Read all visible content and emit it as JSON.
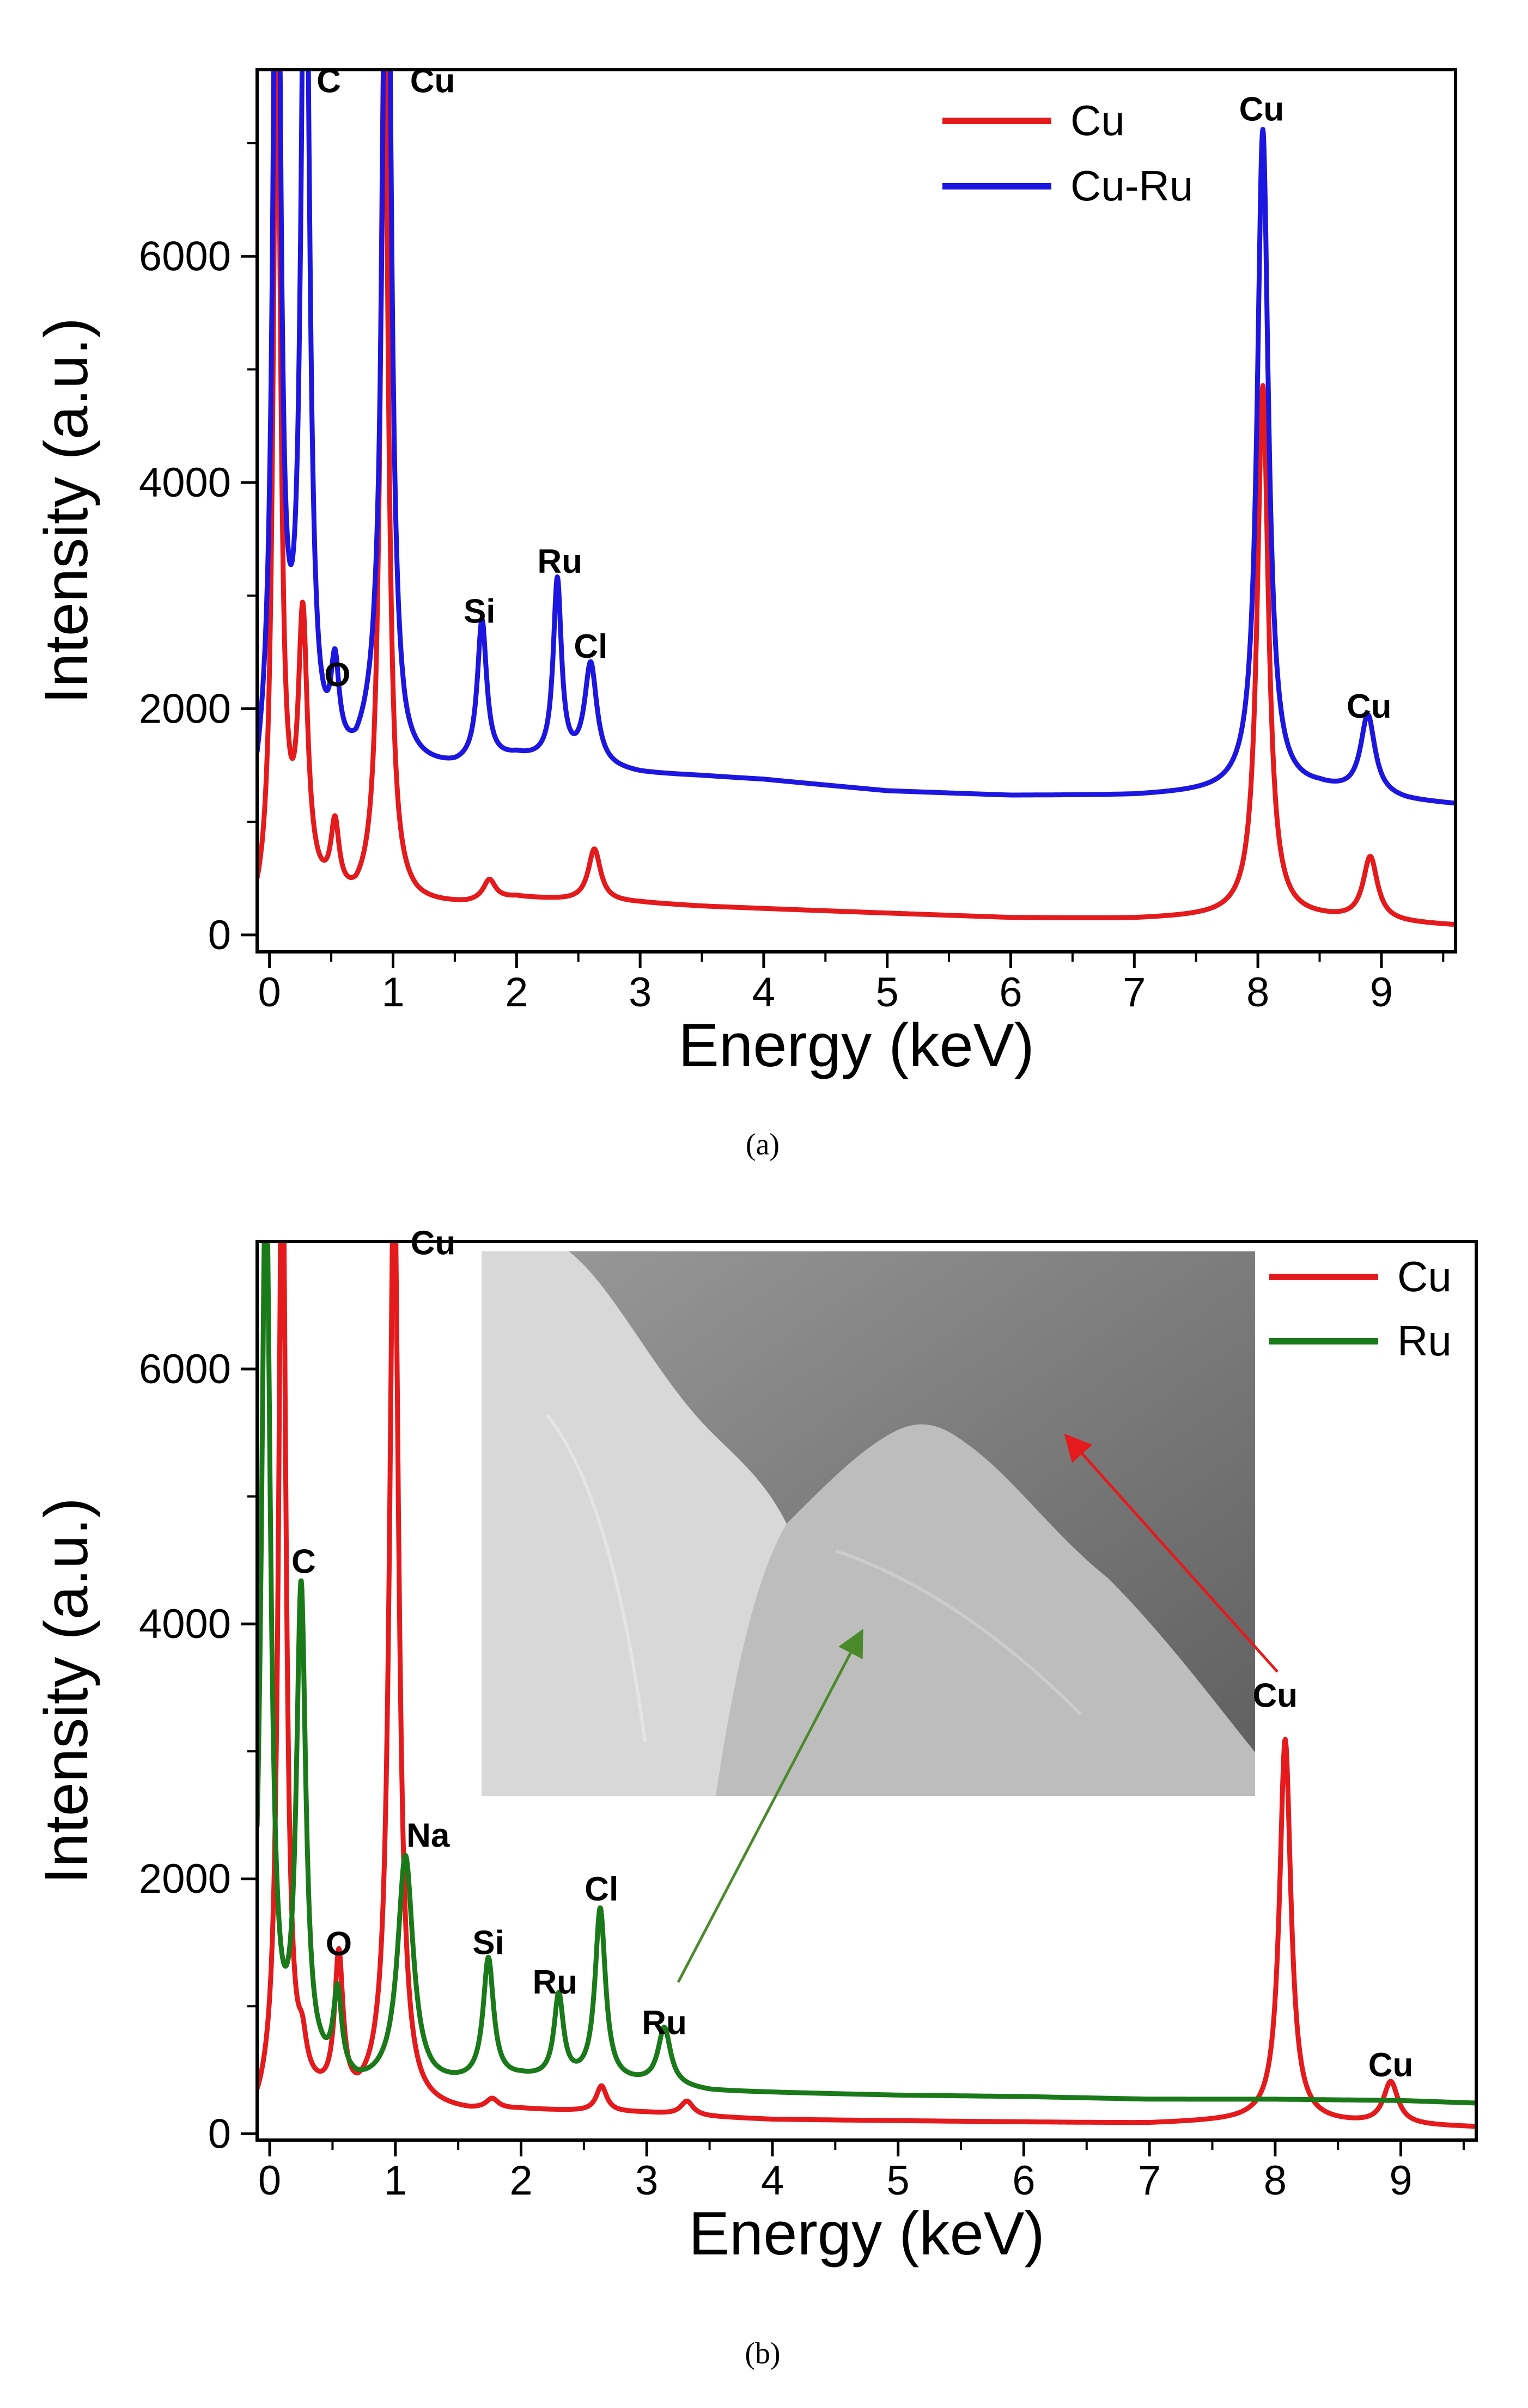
{
  "chart_data": [
    {
      "id": "a",
      "type": "line",
      "caption": "(a)",
      "xlabel": "Energy (keV)",
      "ylabel": "Intensity (a.u.)",
      "xlim": [
        -0.1,
        9.6
      ],
      "ylim": [
        -150,
        7650
      ],
      "xticks": [
        0,
        1,
        2,
        3,
        4,
        5,
        6,
        7,
        8,
        9
      ],
      "yticks": [
        0,
        2000,
        4000,
        6000
      ],
      "legend_position": "top-right",
      "series": [
        {
          "name": "Cu",
          "color": "#e41a1c",
          "baseline": [
            [
              -0.1,
              80
            ],
            [
              0,
              180
            ],
            [
              0.15,
              450
            ],
            [
              0.4,
              300
            ],
            [
              0.7,
              220
            ],
            [
              0.85,
              300
            ],
            [
              1.2,
              250
            ],
            [
              1.6,
              260
            ],
            [
              2.0,
              320
            ],
            [
              2.4,
              300
            ],
            [
              3,
              280
            ],
            [
              3.5,
              250
            ],
            [
              4,
              230
            ],
            [
              5,
              190
            ],
            [
              6,
              150
            ],
            [
              7,
              140
            ],
            [
              7.8,
              160
            ],
            [
              8.5,
              140
            ],
            [
              9.2,
              100
            ],
            [
              9.6,
              80
            ]
          ],
          "peaks": [
            [
              0.06,
              8200,
              0.035
            ],
            [
              0.27,
              2300,
              0.045
            ],
            [
              0.53,
              600,
              0.04
            ],
            [
              0.93,
              7700,
              0.04
            ],
            [
              1.78,
              180,
              0.06
            ],
            [
              2.63,
              460,
              0.06
            ],
            [
              8.04,
              4700,
              0.055
            ],
            [
              8.91,
              560,
              0.07
            ]
          ]
        },
        {
          "name": "Cu-Ru",
          "color": "#1c16e0",
          "baseline": [
            [
              -0.1,
              1100
            ],
            [
              0,
              1500
            ],
            [
              0.15,
              1600
            ],
            [
              0.4,
              1400
            ],
            [
              0.7,
              1450
            ],
            [
              0.85,
              1700
            ],
            [
              1.1,
              1450
            ],
            [
              1.5,
              1450
            ],
            [
              2.0,
              1550
            ],
            [
              2.5,
              1480
            ],
            [
              3,
              1420
            ],
            [
              3.5,
              1400
            ],
            [
              4,
              1370
            ],
            [
              5,
              1270
            ],
            [
              6,
              1230
            ],
            [
              7,
              1230
            ],
            [
              7.8,
              1260
            ],
            [
              8.5,
              1280
            ],
            [
              9.2,
              1180
            ],
            [
              9.6,
              1150
            ]
          ],
          "peaks": [
            [
              0.06,
              9000,
              0.035
            ],
            [
              0.29,
              8300,
              0.04
            ],
            [
              0.53,
              750,
              0.04
            ],
            [
              0.95,
              9000,
              0.04
            ],
            [
              1.72,
              1250,
              0.045
            ],
            [
              2.33,
              1600,
              0.04
            ],
            [
              2.6,
              900,
              0.06
            ],
            [
              8.04,
              5850,
              0.055
            ],
            [
              8.89,
              700,
              0.07
            ]
          ]
        }
      ],
      "annotations": [
        {
          "text": "C",
          "x": 0.48,
          "y": 7450
        },
        {
          "text": "Cu",
          "x": 1.32,
          "y": 7450
        },
        {
          "text": "O",
          "x": 0.55,
          "y": 2200
        },
        {
          "text": "Si",
          "x": 1.7,
          "y": 2760
        },
        {
          "text": "Ru",
          "x": 2.35,
          "y": 3200
        },
        {
          "text": "Cl",
          "x": 2.6,
          "y": 2450
        },
        {
          "text": "Cu",
          "x": 8.03,
          "y": 7200
        },
        {
          "text": "Cu",
          "x": 8.9,
          "y": 1920
        }
      ]
    },
    {
      "id": "b",
      "type": "line",
      "caption": "(b)",
      "xlabel": "Energy (keV)",
      "ylabel": "Intensity (a.u.)",
      "xlim": [
        -0.1,
        9.6
      ],
      "ylim": [
        -50,
        7000
      ],
      "xticks": [
        0,
        1,
        2,
        3,
        4,
        5,
        6,
        7,
        8,
        9
      ],
      "yticks": [
        0,
        2000,
        4000,
        6000
      ],
      "legend_position": "top-right",
      "inset": "SEM micrograph",
      "series": [
        {
          "name": "Cu",
          "color": "#e41a1c",
          "baseline": [
            [
              -0.1,
              100
            ],
            [
              0,
              200
            ],
            [
              0.15,
              300
            ],
            [
              0.4,
              250
            ],
            [
              0.7,
              200
            ],
            [
              0.85,
              250
            ],
            [
              1.2,
              180
            ],
            [
              1.6,
              160
            ],
            [
              2,
              180
            ],
            [
              2.5,
              170
            ],
            [
              3,
              160
            ],
            [
              3.5,
              130
            ],
            [
              4,
              110
            ],
            [
              5,
              100
            ],
            [
              6,
              90
            ],
            [
              7,
              80
            ],
            [
              7.8,
              100
            ],
            [
              8.5,
              80
            ],
            [
              9.2,
              60
            ],
            [
              9.6,
              50
            ]
          ],
          "peaks": [
            [
              0.1,
              7800,
              0.035
            ],
            [
              0.26,
              250,
              0.04
            ],
            [
              0.55,
              1100,
              0.04
            ],
            [
              0.99,
              7400,
              0.045
            ],
            [
              1.77,
              80,
              0.06
            ],
            [
              2.64,
              200,
              0.05
            ],
            [
              3.32,
              110,
              0.06
            ],
            [
              8.08,
              3000,
              0.055
            ],
            [
              8.92,
              330,
              0.07
            ]
          ]
        },
        {
          "name": "Ru",
          "color": "#1a7a1a",
          "baseline": [
            [
              -0.1,
              200
            ],
            [
              0,
              250
            ],
            [
              0.15,
              300
            ],
            [
              0.4,
              380
            ],
            [
              0.7,
              330
            ],
            [
              0.9,
              350
            ],
            [
              1.3,
              350
            ],
            [
              1.6,
              380
            ],
            [
              2,
              420
            ],
            [
              2.5,
              400
            ],
            [
              3,
              380
            ],
            [
              3.5,
              330
            ],
            [
              4,
              320
            ],
            [
              5,
              300
            ],
            [
              6,
              290
            ],
            [
              7,
              270
            ],
            [
              8,
              270
            ],
            [
              9,
              260
            ],
            [
              9.6,
              240
            ]
          ],
          "peaks": [
            [
              -0.03,
              7300,
              0.045
            ],
            [
              0.25,
              3800,
              0.045
            ],
            [
              0.54,
              650,
              0.04
            ],
            [
              1.08,
              1800,
              0.075
            ],
            [
              1.74,
              950,
              0.05
            ],
            [
              2.3,
              650,
              0.045
            ],
            [
              2.63,
              1350,
              0.05
            ],
            [
              3.14,
              450,
              0.06
            ]
          ]
        }
      ],
      "annotations": [
        {
          "text": "Cu",
          "x": 1.3,
          "y": 6900
        },
        {
          "text": "C",
          "x": 0.27,
          "y": 4400
        },
        {
          "text": "Na",
          "x": 1.26,
          "y": 2250
        },
        {
          "text": "O",
          "x": 0.55,
          "y": 1400
        },
        {
          "text": "Si",
          "x": 1.74,
          "y": 1410
        },
        {
          "text": "Ru",
          "x": 2.27,
          "y": 1100
        },
        {
          "text": "Cl",
          "x": 2.64,
          "y": 1830
        },
        {
          "text": "Ru",
          "x": 3.14,
          "y": 780
        },
        {
          "text": "Cu",
          "x": 8.0,
          "y": 3350
        },
        {
          "text": "Cu",
          "x": 8.92,
          "y": 450
        }
      ]
    }
  ]
}
